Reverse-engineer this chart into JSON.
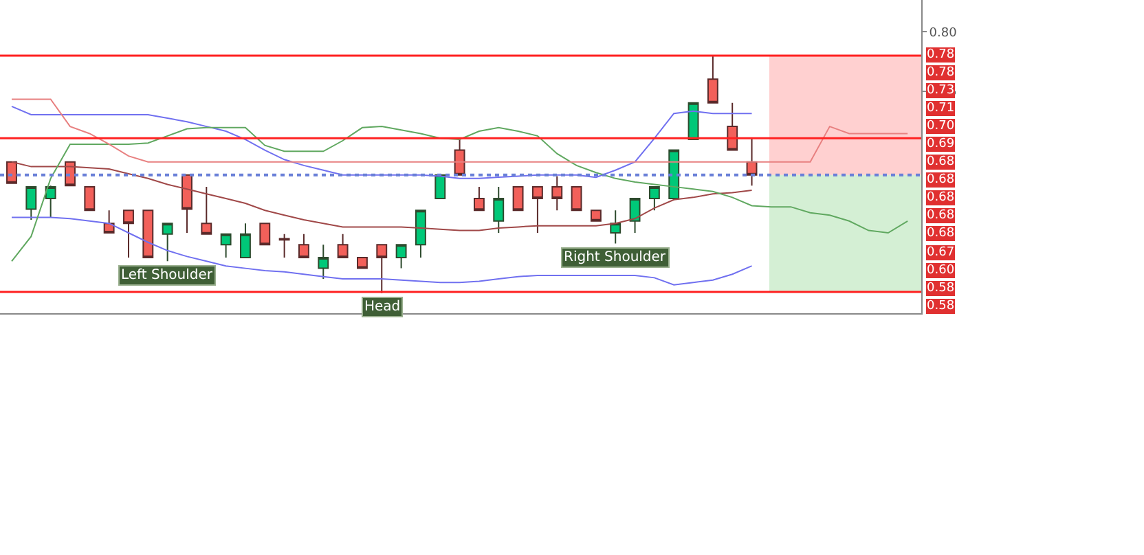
{
  "chart_data": {
    "type": "candlestick",
    "categories": [
      null,
      null,
      null,
      null,
      null,
      null,
      null,
      null,
      null,
      null,
      null,
      null,
      null,
      null,
      null,
      null,
      null,
      null,
      null,
      null,
      null,
      null,
      null,
      null,
      null,
      null,
      null,
      null,
      null,
      null,
      null,
      null,
      null,
      null,
      null,
      null,
      null,
      null,
      null,
      null,
      null,
      null,
      null,
      null,
      null,
      null,
      null
    ],
    "ohlc": [
      [
        0.69,
        0.69,
        0.672,
        0.672
      ],
      [
        0.65,
        0.669,
        0.641,
        0.669
      ],
      [
        0.659,
        0.67,
        0.643,
        0.669
      ],
      [
        0.69,
        0.69,
        0.67,
        0.67
      ],
      [
        0.669,
        0.669,
        0.649,
        0.649
      ],
      [
        0.638,
        0.649,
        0.63,
        0.63
      ],
      [
        0.649,
        0.649,
        0.609,
        0.638
      ],
      [
        0.649,
        0.649,
        0.609,
        0.609
      ],
      [
        0.629,
        0.638,
        0.606,
        0.638
      ],
      [
        0.679,
        0.679,
        0.63,
        0.65
      ],
      [
        0.638,
        0.669,
        0.629,
        0.629
      ],
      [
        0.62,
        0.629,
        0.609,
        0.629
      ],
      [
        0.609,
        0.638,
        0.609,
        0.629
      ],
      [
        0.638,
        0.638,
        0.62,
        0.62
      ],
      [
        0.625,
        0.629,
        0.609,
        0.624
      ],
      [
        0.62,
        0.629,
        0.609,
        0.609
      ],
      [
        0.6,
        0.62,
        0.591,
        0.609
      ],
      [
        0.62,
        0.629,
        0.609,
        0.609
      ],
      [
        0.609,
        0.609,
        0.6,
        0.6
      ],
      [
        0.62,
        0.62,
        0.579,
        0.609
      ],
      [
        0.609,
        0.62,
        0.6,
        0.62
      ],
      [
        0.62,
        0.649,
        0.609,
        0.649
      ],
      [
        0.659,
        0.679,
        0.659,
        0.679
      ],
      [
        0.7,
        0.709,
        0.679,
        0.679
      ],
      [
        0.659,
        0.669,
        0.649,
        0.649
      ],
      [
        0.64,
        0.669,
        0.63,
        0.659
      ],
      [
        0.669,
        0.669,
        0.649,
        0.649
      ],
      [
        0.669,
        0.669,
        0.63,
        0.659
      ],
      [
        0.669,
        0.678,
        0.649,
        0.659
      ],
      [
        0.669,
        0.669,
        0.649,
        0.649
      ],
      [
        0.649,
        0.649,
        0.64,
        0.64
      ],
      [
        0.63,
        0.649,
        0.621,
        0.638
      ],
      [
        0.64,
        0.659,
        0.63,
        0.659
      ],
      [
        0.659,
        0.669,
        0.649,
        0.669
      ],
      [
        0.659,
        0.7,
        0.659,
        0.7
      ],
      [
        0.709,
        0.74,
        0.709,
        0.74
      ],
      [
        0.76,
        0.78,
        0.74,
        0.74
      ],
      [
        0.72,
        0.74,
        0.7,
        0.7
      ],
      [
        0.69,
        0.71,
        0.67,
        0.679
      ],
      null,
      null,
      null,
      null,
      null,
      null,
      null,
      null
    ],
    "series": [
      {
        "type": "line",
        "color": "#a04848",
        "values": [
          0.69,
          0.686,
          0.686,
          0.686,
          0.685,
          0.684,
          0.68,
          0.676,
          0.671,
          0.667,
          0.663,
          0.659,
          0.655,
          0.649,
          0.645,
          0.641,
          0.638,
          0.635,
          0.635,
          0.635,
          0.635,
          0.634,
          0.633,
          0.632,
          0.632,
          0.634,
          0.635,
          0.636,
          0.636,
          0.636,
          0.636,
          0.638,
          0.642,
          0.651,
          0.658,
          0.66,
          0.663,
          0.664,
          0.666,
          null,
          null,
          null,
          null,
          null,
          null,
          null,
          null
        ]
      },
      {
        "type": "line",
        "color": "#7070f0",
        "values": [
          0.737,
          0.73,
          0.73,
          0.73,
          0.73,
          0.73,
          0.73,
          0.73,
          0.727,
          0.724,
          0.72,
          0.716,
          0.709,
          0.7,
          0.692,
          0.687,
          0.683,
          0.679,
          0.679,
          0.679,
          0.679,
          0.679,
          0.678,
          0.676,
          0.676,
          0.677,
          0.678,
          0.679,
          0.679,
          0.679,
          0.677,
          0.683,
          0.69,
          0.71,
          0.731,
          0.733,
          0.731,
          0.731,
          0.731,
          null,
          null,
          null,
          null,
          null,
          null,
          null,
          null
        ]
      },
      {
        "type": "line",
        "color": "#7070f0",
        "values": [
          0.643,
          0.643,
          0.643,
          0.642,
          0.64,
          0.638,
          0.63,
          0.622,
          0.615,
          0.61,
          0.606,
          0.602,
          0.6,
          0.598,
          0.597,
          0.595,
          0.593,
          0.591,
          0.591,
          0.591,
          0.59,
          0.589,
          0.588,
          0.588,
          0.589,
          0.591,
          0.593,
          0.594,
          0.594,
          0.594,
          0.594,
          0.594,
          0.594,
          0.592,
          0.586,
          0.588,
          0.59,
          0.595,
          0.602,
          null,
          null,
          null,
          null,
          null,
          null,
          null,
          null
        ]
      },
      {
        "type": "line",
        "color": "#60a860",
        "values": [
          0.606,
          0.627,
          0.676,
          0.705,
          0.705,
          0.705,
          0.705,
          0.706,
          0.712,
          0.718,
          0.719,
          0.719,
          0.719,
          0.704,
          0.699,
          0.699,
          0.699,
          0.708,
          0.719,
          0.72,
          0.717,
          0.714,
          0.71,
          0.709,
          0.716,
          0.719,
          0.716,
          0.712,
          0.697,
          0.687,
          0.681,
          0.676,
          0.673,
          0.671,
          0.669,
          0.667,
          0.665,
          0.66,
          0.653,
          0.652,
          0.652,
          0.647,
          0.645,
          0.64,
          0.632,
          0.63,
          0.64
        ]
      },
      {
        "type": "line",
        "color": "#e88080",
        "values": [
          0.743,
          0.743,
          0.743,
          0.72,
          0.714,
          0.705,
          0.695,
          0.69,
          0.69,
          0.69,
          0.69,
          0.69,
          0.69,
          0.69,
          0.69,
          0.69,
          0.69,
          0.69,
          0.69,
          0.69,
          0.69,
          0.69,
          0.69,
          0.69,
          0.69,
          0.69,
          0.69,
          0.69,
          0.69,
          0.69,
          0.69,
          0.69,
          0.69,
          0.69,
          0.69,
          0.69,
          0.69,
          0.69,
          0.69,
          0.69,
          0.69,
          0.69,
          0.72,
          0.714,
          0.714,
          0.714,
          0.714
        ]
      }
    ],
    "ylim": [
      0.562,
      0.827
    ],
    "yticks": [
      0.75,
      {
        "value": 0.8,
        "label": "0.80"
      }
    ],
    "tick_labels": "y",
    "grid": false,
    "ref_lines": [
      {
        "axis": "y",
        "value": 0.78,
        "color": "#ff2020"
      },
      {
        "axis": "y",
        "value": 0.71,
        "color": "#ff2020"
      },
      {
        "axis": "y",
        "value": 0.679,
        "color": "#6a80d8",
        "line_style": "dotted"
      },
      {
        "axis": "y",
        "value": 0.58,
        "color": "#ff2020"
      }
    ],
    "bands": [
      {
        "axis": "y",
        "from": 0.679,
        "to": 0.78,
        "color": "#ffb0b0"
      },
      {
        "axis": "y",
        "from": 0.58,
        "to": 0.679,
        "color": "#b8e4b8"
      }
    ],
    "annotations": [
      {
        "text": "Left Shoulder",
        "y": 0.606
      },
      {
        "text": "Head",
        "y": 0.579
      },
      {
        "text": "Right Shoulder",
        "y": 0.621
      },
      "0.78",
      "0.78",
      "0.73",
      "0.71",
      "0.70",
      "0.69",
      "0.68",
      "0.68",
      "0.68",
      "0.68",
      "0.68",
      "0.67",
      "0.60",
      "0.58",
      "0.58"
    ]
  }
}
